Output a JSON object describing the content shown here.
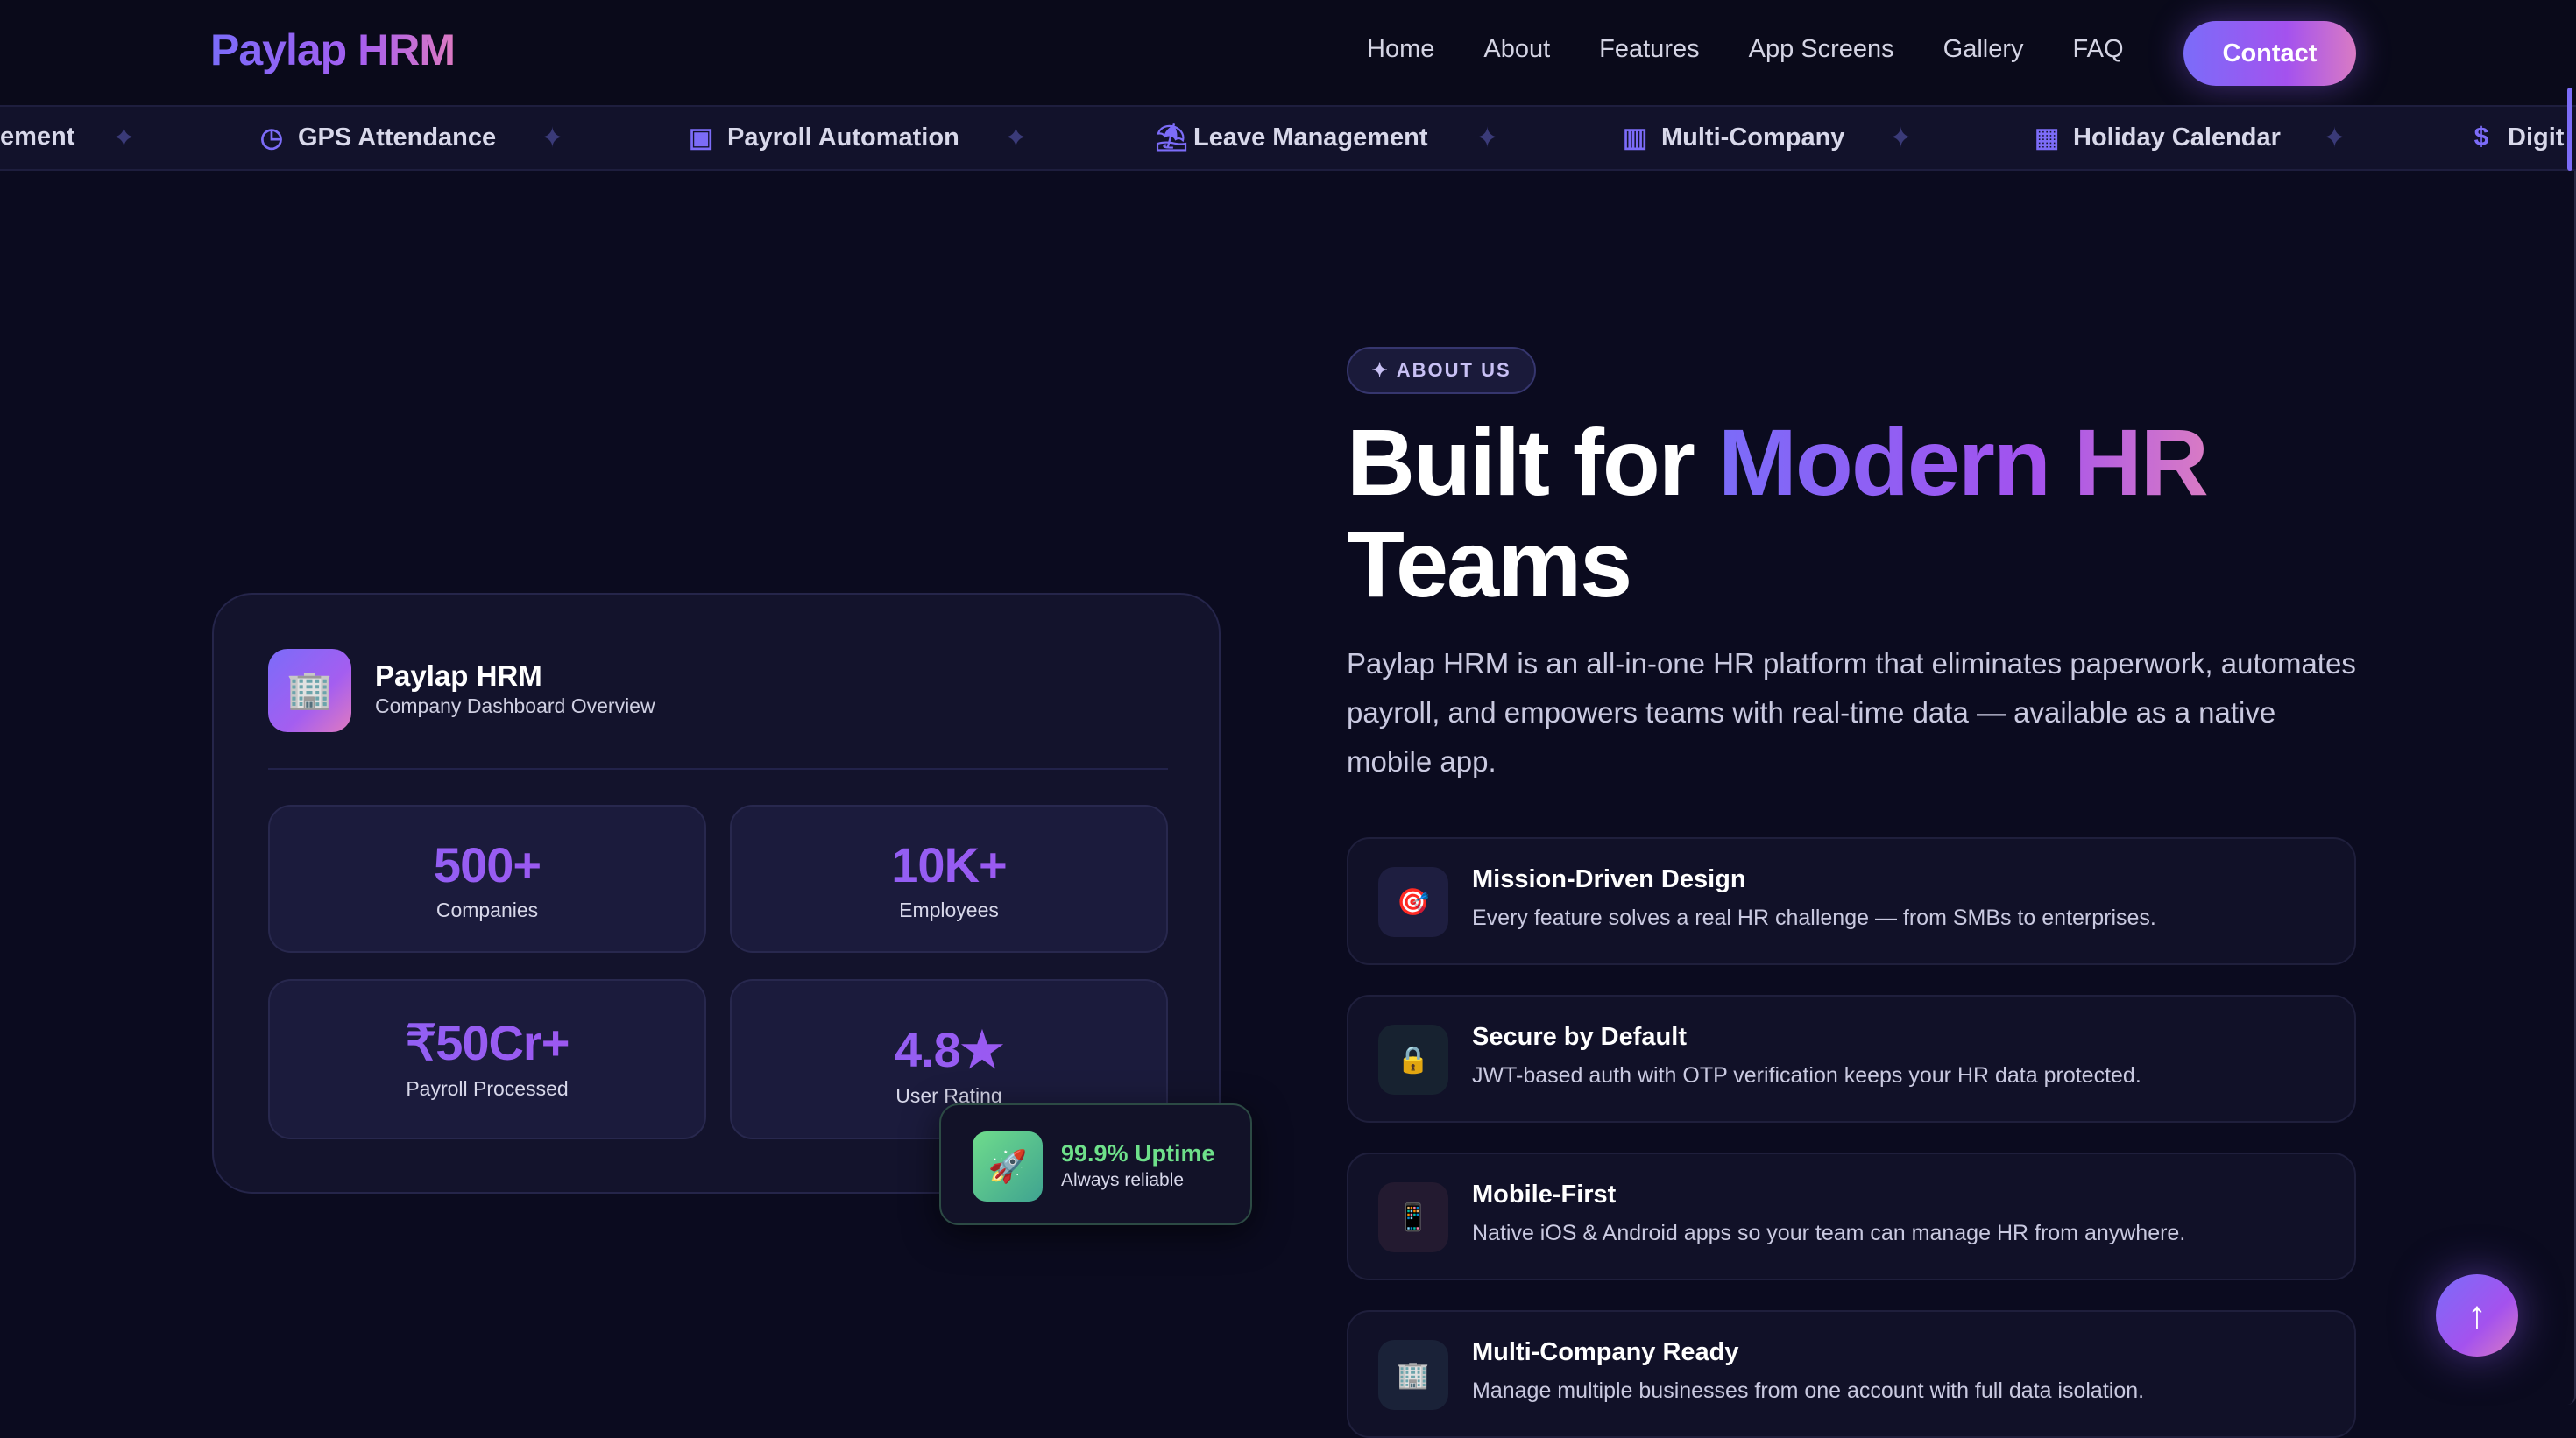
{
  "nav": {
    "logo": "Paylap HRM",
    "links": [
      "Home",
      "About",
      "Features",
      "App Screens",
      "Gallery",
      "FAQ"
    ],
    "contact": "Contact"
  },
  "ticker": [
    {
      "label": "ement",
      "icon": ""
    },
    {
      "label": "GPS Attendance",
      "icon": "clock-icon"
    },
    {
      "label": "Payroll Automation",
      "icon": "money-icon"
    },
    {
      "label": "Leave Management",
      "icon": "beach-umbrella-icon"
    },
    {
      "label": "Multi-Company",
      "icon": "building-icon"
    },
    {
      "label": "Holiday Calendar",
      "icon": "calendar-icon"
    },
    {
      "label": "Digit",
      "icon": "invoice-icon"
    }
  ],
  "dashboard": {
    "title": "Paylap HRM",
    "subtitle": "Company Dashboard Overview",
    "icon": "office-building-icon",
    "stats": [
      {
        "value": "500+",
        "label": "Companies"
      },
      {
        "value": "10K+",
        "label": "Employees"
      },
      {
        "value": "₹50Cr+",
        "label": "Payroll Processed"
      },
      {
        "value": "4.8★",
        "label": "User Rating"
      }
    ],
    "uptime": {
      "title": "99.9% Uptime",
      "subtitle": "Always reliable",
      "icon": "rocket-icon"
    }
  },
  "about": {
    "badge": "ABOUT US",
    "heading_plain": "Built for ",
    "heading_accent": "Modern HR",
    "heading_end": "Teams",
    "paragraph": "Paylap HRM is an all-in-one HR platform that eliminates paperwork, automates payroll, and empowers teams with real-time data — available as a native mobile app.",
    "features": [
      {
        "title": "Mission-Driven Design",
        "desc": "Every feature solves a real HR challenge — from SMBs to enterprises.",
        "icon": "target-icon"
      },
      {
        "title": "Secure by Default",
        "desc": "JWT-based auth with OTP verification keeps your HR data protected.",
        "icon": "lock-icon"
      },
      {
        "title": "Mobile-First",
        "desc": "Native iOS & Android apps so your team can manage HR from anywhere.",
        "icon": "mobile-phone-icon"
      },
      {
        "title": "Multi-Company Ready",
        "desc": "Manage multiple businesses from one account with full data isolation.",
        "icon": "office-building-icon"
      }
    ]
  },
  "colors": {
    "accent": "#7b6cf9",
    "accent2": "#a452ee",
    "pink": "#d97bc4",
    "bg": "#0b0b1f",
    "uptime": "#6ee08a"
  }
}
